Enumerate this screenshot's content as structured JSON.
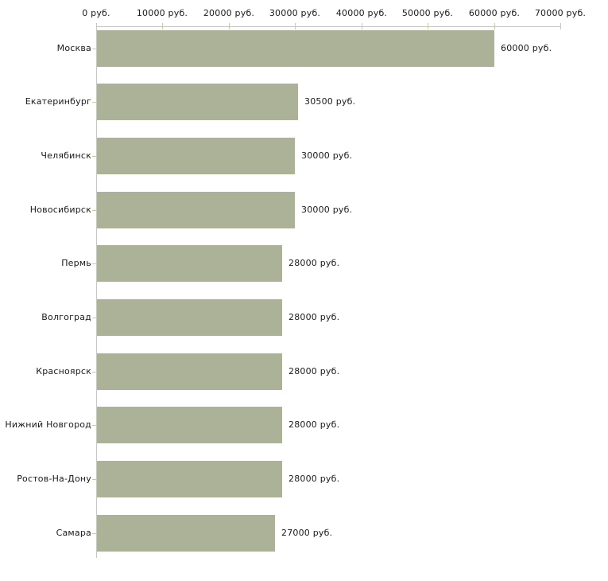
{
  "chart_data": {
    "type": "bar",
    "orientation": "horizontal",
    "title": "",
    "xlabel": "",
    "ylabel": "",
    "xlim": [
      0,
      70000
    ],
    "grid": false,
    "legend_position": "none",
    "axis_position": "top",
    "x_tick_values": [
      0,
      10000,
      20000,
      30000,
      40000,
      50000,
      60000,
      70000
    ],
    "x_tick_labels": [
      "0 руб.",
      "10000 руб.",
      "20000 руб.",
      "30000 руб.",
      "40000 руб.",
      "50000 руб.",
      "60000 руб.",
      "70000 руб."
    ],
    "categories": [
      "Москва",
      "Екатеринбург",
      "Челябинск",
      "Новосибирск",
      "Пермь",
      "Волгоград",
      "Красноярск",
      "Нижний Новгород",
      "Ростов-На-Дону",
      "Самара"
    ],
    "values": [
      60000,
      30500,
      30000,
      30000,
      28000,
      28000,
      28000,
      28000,
      28000,
      27000
    ],
    "value_labels": [
      "60000 руб.",
      "30500 руб.",
      "30000 руб.",
      "30000 руб.",
      "28000 руб.",
      "28000 руб.",
      "28000 руб.",
      "28000 руб.",
      "28000 руб.",
      "27000 руб."
    ],
    "colors": {
      "bar": "#abb298",
      "axis_line": "#c6c6c6",
      "tick_mark": "#c9cba3",
      "text": "#1a1a1a",
      "background": "#ffffff"
    }
  }
}
